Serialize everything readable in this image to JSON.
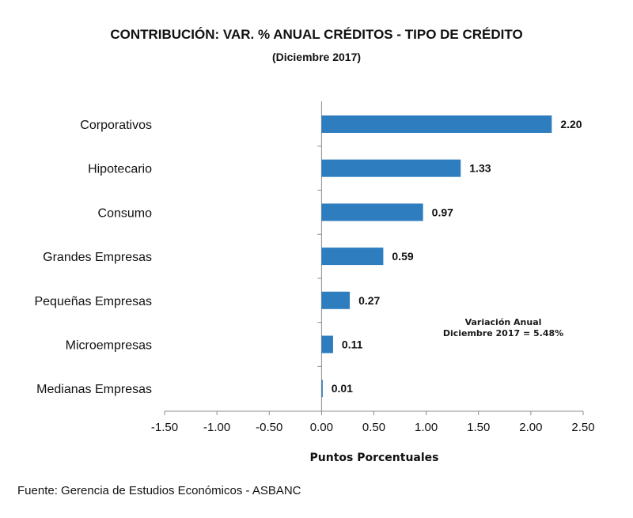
{
  "chart_data": {
    "type": "bar",
    "orientation": "horizontal",
    "title": "CONTRIBUCIÓN: VAR. % ANUAL CRÉDITOS - TIPO DE CRÉDITO",
    "subtitle": "(Diciembre 2017)",
    "xlabel": "Puntos Porcentuales",
    "ylabel": "",
    "categories": [
      "Corporativos",
      "Hipotecario",
      "Consumo",
      "Grandes Empresas",
      "Pequeñas Empresas",
      "Microempresas",
      "Medianas Empresas"
    ],
    "values": [
      2.2,
      1.33,
      0.97,
      0.59,
      0.27,
      0.11,
      0.01
    ],
    "value_labels": [
      "2.20",
      "1.33",
      "0.97",
      "0.59",
      "0.27",
      "0.11",
      "0.01"
    ],
    "xlim": [
      -1.5,
      2.5
    ],
    "xticks": [
      -1.5,
      -1.0,
      -0.5,
      0.0,
      0.5,
      1.0,
      1.5,
      2.0,
      2.5
    ],
    "xtick_labels": [
      "-1.50",
      "-1.00",
      "-0.50",
      "0.00",
      "0.50",
      "1.00",
      "1.50",
      "2.00",
      "2.50"
    ],
    "grid": false,
    "bar_color": "#2E7DBF",
    "annotation": {
      "line1": "Variación Anual",
      "line2": "Diciembre 2017 = 5.48%"
    }
  },
  "source": "Fuente: Gerencia de Estudios Económicos - ASBANC"
}
